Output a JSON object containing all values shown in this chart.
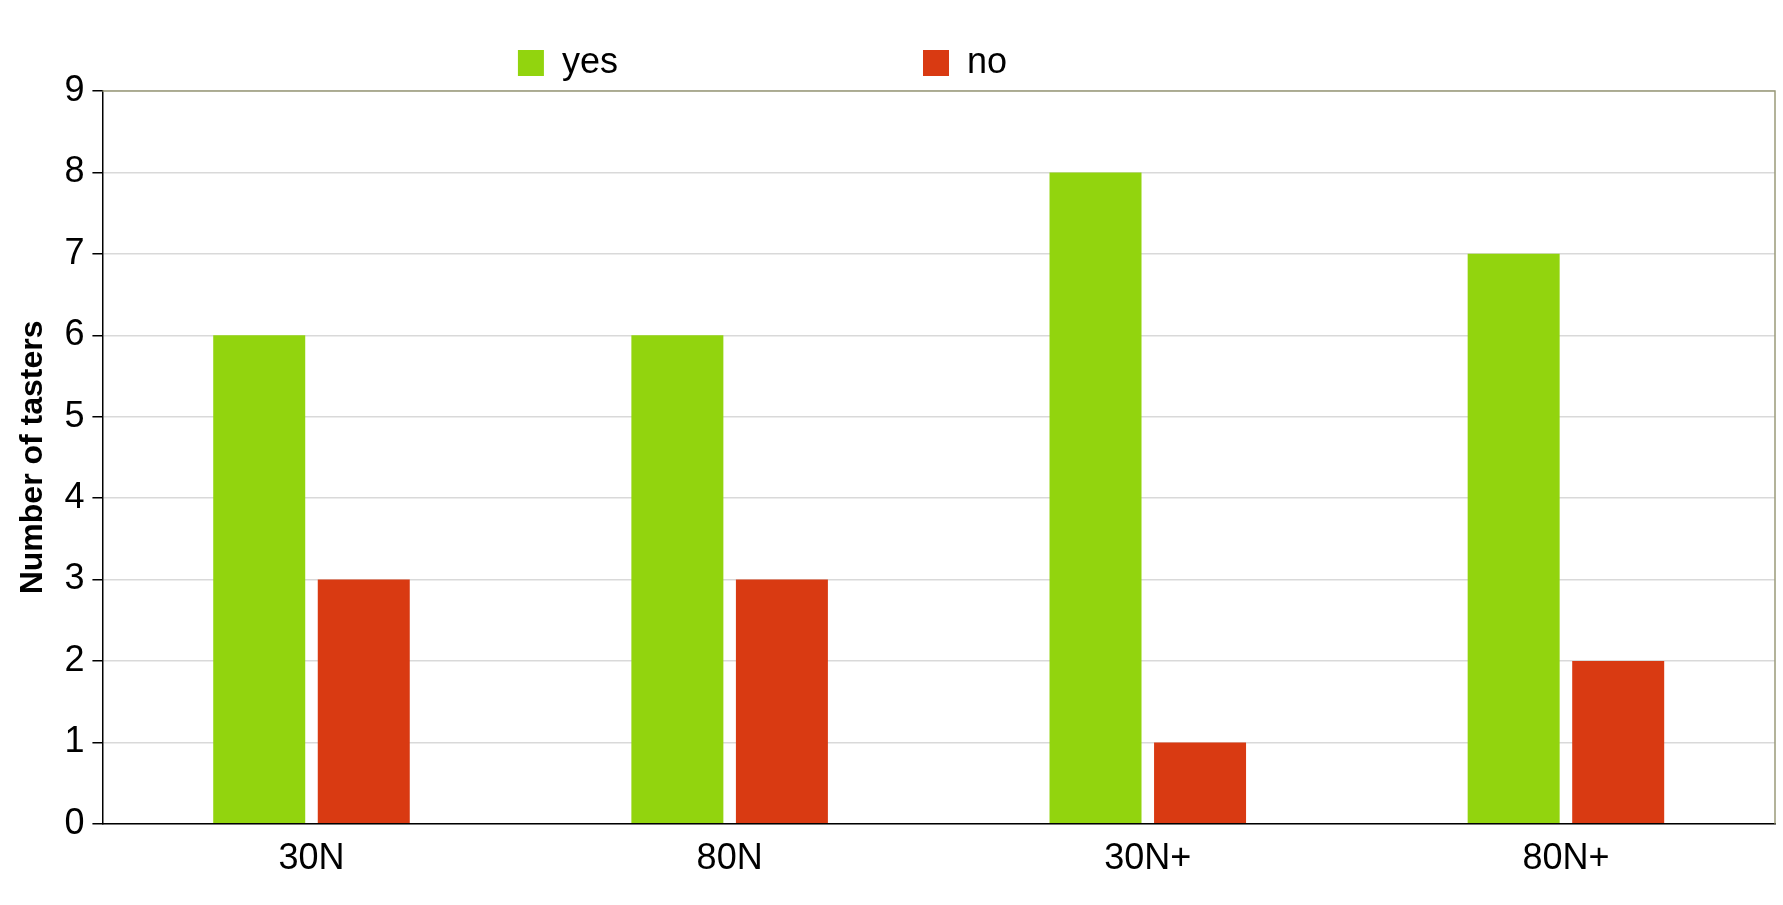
{
  "chart_data": {
    "type": "bar",
    "ylabel": "Number of tasters",
    "categories": [
      "30N",
      "80N",
      "30N+",
      "80N+"
    ],
    "series": [
      {
        "name": "yes",
        "color": "#92d40e",
        "values": [
          6,
          6,
          8,
          7
        ]
      },
      {
        "name": "no",
        "color": "#d93a12",
        "values": [
          3,
          3,
          1,
          2
        ]
      }
    ],
    "ylim": [
      0,
      9
    ],
    "yticks": [
      0,
      1,
      2,
      3,
      4,
      5,
      6,
      7,
      8,
      9
    ],
    "grid": "y",
    "legend": "top"
  }
}
